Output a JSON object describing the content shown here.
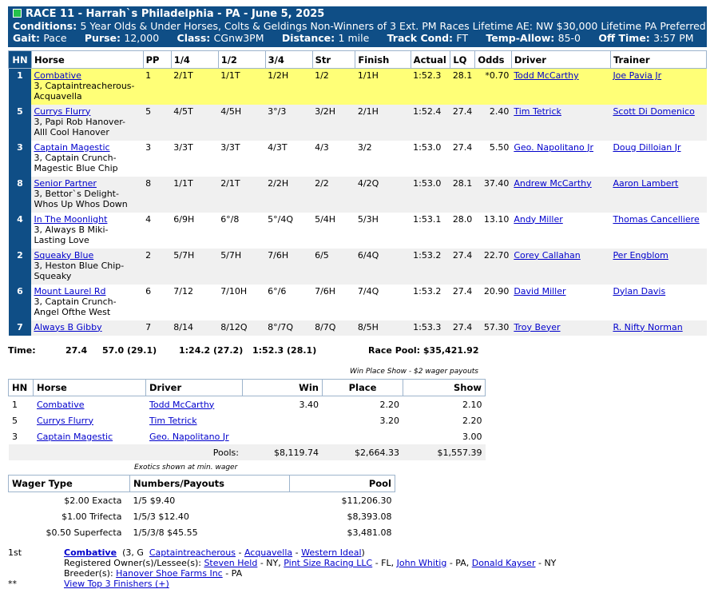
{
  "header": {
    "race_title": "RACE 11 - Harrah`s Philadelphia - PA - June 5, 2025",
    "conditions_label": "Conditions:",
    "conditions_text": "5 Year Olds & Under Horses, Colts & Geldings Non-Winners of 3 Ext. PM Races Lifetime AE: NW $30,000 Lifetime PA Preferred",
    "gait_label": "Gait:",
    "gait": "Pace",
    "purse_label": "Purse:",
    "purse": "12,000",
    "class_label": "Class:",
    "class": "CGnw3PM",
    "distance_label": "Distance:",
    "distance": "1 mile",
    "track_label": "Track Cond:",
    "track": "FT",
    "temp_label": "Temp-Allow:",
    "temp": "85-0",
    "off_label": "Off Time:",
    "off": "3:57 PM"
  },
  "results": {
    "columns": [
      "HN",
      "Horse",
      "PP",
      "1/4",
      "1/2",
      "3/4",
      "Str",
      "Finish",
      "Actual",
      "LQ",
      "Odds",
      "Driver",
      "Trainer"
    ],
    "rows": [
      {
        "hn": "1",
        "horse": "Combative",
        "line1": "3, Captaintreacherous-",
        "line2": "Acquavella",
        "pp": "1",
        "q1": "2/1T",
        "q2": "1/1T",
        "q3": "1/2H",
        "str": "1/2",
        "fin": "1/1H",
        "actual": "1:52.3",
        "lq": "28.1",
        "odds": "*0.70",
        "driver": "Todd McCarthy",
        "trainer": "Joe Pavia Jr"
      },
      {
        "hn": "5",
        "horse": "Currys Flurry",
        "line1": "3, Papi Rob Hanover-",
        "line2": "Alll Cool Hanover",
        "pp": "5",
        "q1": "4/5T",
        "q2": "4/5H",
        "q3": "3°/3",
        "str": "3/2H",
        "fin": "2/1H",
        "actual": "1:52.4",
        "lq": "27.4",
        "odds": "2.40",
        "driver": "Tim Tetrick",
        "trainer": "Scott Di Domenico"
      },
      {
        "hn": "3",
        "horse": "Captain Magestic",
        "line1": "3, Captain Crunch-",
        "line2": "Magestic Blue Chip",
        "pp": "3",
        "q1": "3/3T",
        "q2": "3/3T",
        "q3": "4/3T",
        "str": "4/3",
        "fin": "3/2",
        "actual": "1:53.0",
        "lq": "27.4",
        "odds": "5.50",
        "driver": "Geo. Napolitano Jr",
        "trainer": "Doug Dilloian Jr"
      },
      {
        "hn": "8",
        "horse": "Senior Partner",
        "line1": "3, Bettor`s Delight-",
        "line2": "Whos Up Whos Down",
        "pp": "8",
        "q1": "1/1T",
        "q2": "2/1T",
        "q3": "2/2H",
        "str": "2/2",
        "fin": "4/2Q",
        "actual": "1:53.0",
        "lq": "28.1",
        "odds": "37.40",
        "driver": "Andrew McCarthy",
        "trainer": "Aaron Lambert"
      },
      {
        "hn": "4",
        "horse": "In The Moonlight",
        "line1": "3, Always B Miki-",
        "line2": "Lasting Love",
        "pp": "4",
        "q1": "6/9H",
        "q2": "6°/8",
        "q3": "5°/4Q",
        "str": "5/4H",
        "fin": "5/3H",
        "actual": "1:53.1",
        "lq": "28.0",
        "odds": "13.10",
        "driver": "Andy Miller",
        "trainer": "Thomas Cancelliere"
      },
      {
        "hn": "2",
        "horse": "Squeaky Blue",
        "line1": "3, Heston Blue Chip-",
        "line2": "Squeaky",
        "pp": "2",
        "q1": "5/7H",
        "q2": "5/7H",
        "q3": "7/6H",
        "str": "6/5",
        "fin": "6/4Q",
        "actual": "1:53.2",
        "lq": "27.4",
        "odds": "22.70",
        "driver": "Corey Callahan",
        "trainer": "Per Engblom"
      },
      {
        "hn": "6",
        "horse": "Mount Laurel Rd",
        "line1": "3, Captain Crunch-",
        "line2": "Angel Ofthe West",
        "pp": "6",
        "q1": "7/12",
        "q2": "7/10H",
        "q3": "6°/6",
        "str": "7/6H",
        "fin": "7/4Q",
        "actual": "1:53.2",
        "lq": "27.4",
        "odds": "20.90",
        "driver": "David Miller",
        "trainer": "Dylan Davis"
      },
      {
        "hn": "7",
        "horse": "Always B Gibby",
        "line1": "",
        "line2": "",
        "pp": "7",
        "q1": "8/14",
        "q2": "8/12Q",
        "q3": "8°/7Q",
        "str": "8/7Q",
        "fin": "8/5H",
        "actual": "1:53.3",
        "lq": "27.4",
        "odds": "57.30",
        "driver": "Troy Beyer",
        "trainer": "R. Nifty Norman"
      }
    ]
  },
  "times": {
    "label": "Time:",
    "q1": "27.4",
    "q2": "57.0 (29.1)",
    "q3": "1:24.2 (27.2)",
    "final": "1:52.3 (28.1)",
    "pool_label": "Race Pool:",
    "pool": "$35,421.92"
  },
  "wps": {
    "note": "Win Place Show - $2 wager payouts",
    "headers": {
      "hn": "HN",
      "horse": "Horse",
      "driver": "Driver",
      "win": "Win",
      "place": "Place",
      "show": "Show"
    },
    "rows": [
      {
        "hn": "1",
        "horse": "Combative",
        "driver": "Todd McCarthy",
        "win": "3.40",
        "place": "2.20",
        "show": "2.10"
      },
      {
        "hn": "5",
        "horse": "Currys Flurry",
        "driver": "Tim Tetrick",
        "win": "",
        "place": "3.20",
        "show": "2.20"
      },
      {
        "hn": "3",
        "horse": "Captain Magestic",
        "driver": "Geo. Napolitano Jr",
        "win": "",
        "place": "",
        "show": "3.00"
      }
    ],
    "pools": {
      "label": "Pools:",
      "win": "$8,119.74",
      "place": "$2,664.33",
      "show": "$1,557.39"
    }
  },
  "exotics": {
    "note": "Exotics shown at min. wager",
    "headers": {
      "type": "Wager Type",
      "numbers": "Numbers/Payouts",
      "pool": "Pool"
    },
    "rows": [
      {
        "type": "$2.00 Exacta",
        "numbers": "1/5 $9.40",
        "pool": "$11,206.30"
      },
      {
        "type": "$1.00 Trifecta",
        "numbers": "1/5/3 $12.40",
        "pool": "$8,393.08"
      },
      {
        "type": "$0.50 Superfecta",
        "numbers": "1/5/3/8 $45.55",
        "pool": "$3,481.08"
      }
    ]
  },
  "winner": {
    "place": "1st",
    "name": "Combative",
    "age_sex": "(3, G",
    "sire": "Captaintreacherous",
    "dam": "Acquavella",
    "damsire": "Western Ideal",
    "owners_label": "Registered Owner(s)/Lessee(s):",
    "owner1": "Steven Held",
    "owner1_loc": "- NY,",
    "owner2": "Pint Size Racing LLC",
    "owner2_loc": "- FL,",
    "owner3": "John Whitig",
    "owner3_loc": "- PA,",
    "owner4": "Donald Kayser",
    "owner4_loc": "- NY",
    "breeder_label": "Breeder(s):",
    "breeder": "Hanover Shoe Farms Inc",
    "breeder_loc": "- PA",
    "star": "**",
    "top3_link": "View Top 3 Finishers (+)"
  }
}
